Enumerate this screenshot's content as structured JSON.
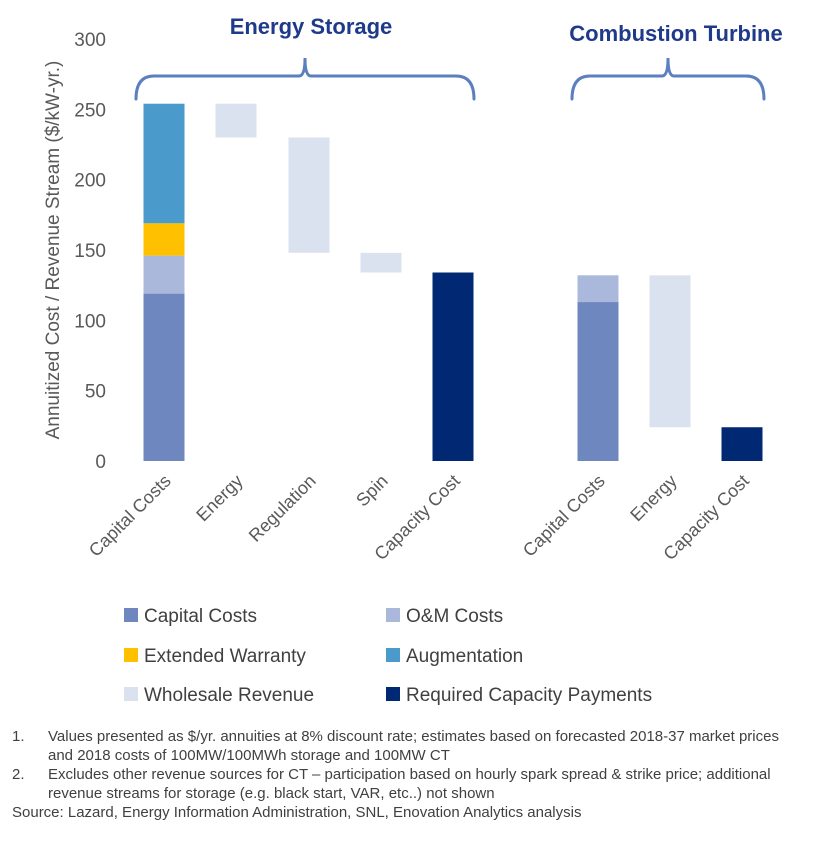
{
  "chart_data": {
    "type": "bar",
    "subtype": "stacked-waterfall",
    "ylabel": "Annuitized Cost / Revenue Stream ($/kW-yr.)",
    "ylim": [
      0,
      300
    ],
    "yticks": [
      0,
      50,
      100,
      150,
      200,
      250,
      300
    ],
    "groups": [
      {
        "title": "Energy Storage",
        "categories": [
          "Capital Costs",
          "Energy",
          "Regulation",
          "Spin",
          "Capacity Cost"
        ]
      },
      {
        "title": "Combustion Turbine",
        "categories": [
          "Capital Costs",
          "Energy",
          "Capacity Cost"
        ]
      }
    ],
    "bars": [
      {
        "group": 0,
        "category": "Capital Costs",
        "segments": [
          {
            "series": "Capital Costs",
            "from": 0,
            "to": 119
          },
          {
            "series": "O&M Costs",
            "from": 119,
            "to": 146
          },
          {
            "series": "Extended Warranty",
            "from": 146,
            "to": 169
          },
          {
            "series": "Augmentation",
            "from": 169,
            "to": 254
          }
        ]
      },
      {
        "group": 0,
        "category": "Energy",
        "segments": [
          {
            "series": "Wholesale Revenue",
            "from": 230,
            "to": 254
          }
        ]
      },
      {
        "group": 0,
        "category": "Regulation",
        "segments": [
          {
            "series": "Wholesale Revenue",
            "from": 148,
            "to": 230
          }
        ]
      },
      {
        "group": 0,
        "category": "Spin",
        "segments": [
          {
            "series": "Wholesale Revenue",
            "from": 134,
            "to": 148
          }
        ]
      },
      {
        "group": 0,
        "category": "Capacity Cost",
        "segments": [
          {
            "series": "Required Capacity Payments",
            "from": 0,
            "to": 134
          }
        ]
      },
      {
        "group": 1,
        "category": "Capital Costs",
        "segments": [
          {
            "series": "Capital Costs",
            "from": 0,
            "to": 113
          },
          {
            "series": "O&M Costs",
            "from": 113,
            "to": 132
          }
        ]
      },
      {
        "group": 1,
        "category": "Energy",
        "segments": [
          {
            "series": "Wholesale Revenue",
            "from": 24,
            "to": 132
          }
        ]
      },
      {
        "group": 1,
        "category": "Capacity Cost",
        "segments": [
          {
            "series": "Required Capacity Payments",
            "from": 0,
            "to": 24
          }
        ]
      }
    ],
    "legend": [
      {
        "name": "Capital Costs",
        "color": "#6f87bf"
      },
      {
        "name": "O&M Costs",
        "color": "#a9b8db"
      },
      {
        "name": "Extended Warranty",
        "color": "#ffc000"
      },
      {
        "name": "Augmentation",
        "color": "#4a9bcb"
      },
      {
        "name": "Wholesale Revenue",
        "color": "#dbe2ef"
      },
      {
        "name": "Required Capacity Payments",
        "color": "#002873"
      }
    ],
    "bracket_color": "#5b7fbf",
    "title_color": "#1f3a8a"
  },
  "notes": [
    {
      "num": "1.",
      "text": "Values presented as $/yr. annuities at 8% discount rate; estimates based on forecasted 2018-37 market prices and 2018 costs of 100MW/100MWh storage and 100MW CT"
    },
    {
      "num": "2.",
      "text": "Excludes other revenue sources for CT – participation based on hourly spark spread & strike price; additional revenue streams for storage (e.g. black start, VAR, etc..) not shown"
    }
  ],
  "source": "Source: Lazard, Energy Information Administration, SNL, Enovation Analytics analysis"
}
